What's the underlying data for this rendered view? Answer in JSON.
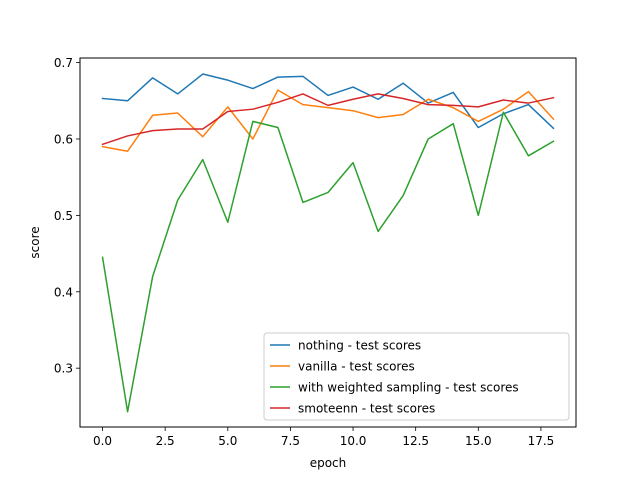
{
  "chart_data": {
    "type": "line",
    "title": "",
    "xlabel": "epoch",
    "ylabel": "score",
    "xlim": [
      -0.9,
      18.9
    ],
    "ylim": [
      0.223,
      0.706
    ],
    "x_ticks": [
      0.0,
      2.5,
      5.0,
      7.5,
      10.0,
      12.5,
      15.0,
      17.5
    ],
    "x_tick_labels": [
      "0.0",
      "2.5",
      "5.0",
      "7.5",
      "10.0",
      "12.5",
      "15.0",
      "17.5"
    ],
    "y_ticks": [
      0.3,
      0.4,
      0.5,
      0.6,
      0.7
    ],
    "y_tick_labels": [
      "0.3",
      "0.4",
      "0.5",
      "0.6",
      "0.7"
    ],
    "grid": false,
    "legend_position": "lower-right",
    "x": [
      0,
      1,
      2,
      3,
      4,
      5,
      6,
      7,
      8,
      9,
      10,
      11,
      12,
      13,
      14,
      15,
      16,
      17,
      18
    ],
    "series": [
      {
        "name": "nothing - test scores",
        "color": "#1f77b4",
        "values": [
          0.653,
          0.65,
          0.68,
          0.659,
          0.685,
          0.677,
          0.666,
          0.681,
          0.682,
          0.657,
          0.668,
          0.652,
          0.673,
          0.647,
          0.661,
          0.615,
          0.633,
          0.645,
          0.614
        ]
      },
      {
        "name": "vanilla - test scores",
        "color": "#ff7f0e",
        "values": [
          0.59,
          0.584,
          0.631,
          0.634,
          0.603,
          0.642,
          0.6,
          0.664,
          0.645,
          0.641,
          0.637,
          0.628,
          0.632,
          0.652,
          0.641,
          0.623,
          0.639,
          0.662,
          0.626
        ]
      },
      {
        "name": "with weighted sampling - test scores",
        "color": "#2ca02c",
        "values": [
          0.445,
          0.243,
          0.42,
          0.52,
          0.573,
          0.491,
          0.623,
          0.615,
          0.517,
          0.53,
          0.569,
          0.479,
          0.526,
          0.6,
          0.62,
          0.5,
          0.635,
          0.578,
          0.597
        ]
      },
      {
        "name": "smoteenn - test scores",
        "color": "#d62728",
        "values": [
          0.593,
          0.604,
          0.611,
          0.613,
          0.613,
          0.636,
          0.639,
          0.648,
          0.659,
          0.644,
          0.652,
          0.659,
          0.653,
          0.645,
          0.644,
          0.642,
          0.651,
          0.647,
          0.654
        ]
      }
    ]
  }
}
